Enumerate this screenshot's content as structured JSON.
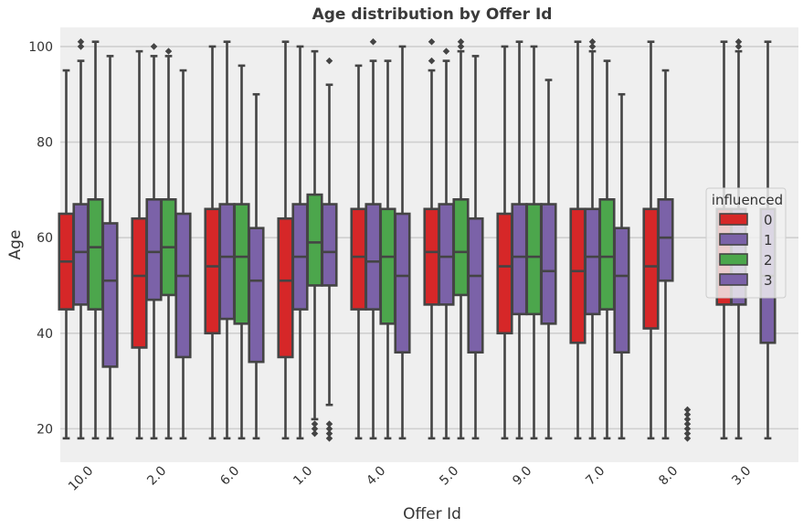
{
  "chart_data": {
    "type": "box",
    "title": "Age distribution by Offer Id",
    "xlabel": "Offer Id",
    "ylabel": "Age",
    "ylim": [
      13,
      104
    ],
    "y_ticks": [
      20,
      40,
      60,
      80,
      100
    ],
    "grid": true,
    "legend_position": "center-right",
    "legend_title": "influenced",
    "categories": [
      "10.0",
      "2.0",
      "6.0",
      "1.0",
      "4.0",
      "5.0",
      "9.0",
      "7.0",
      "8.0",
      "3.0"
    ],
    "series": [
      {
        "name": "0",
        "color": "#d62728",
        "boxes": [
          {
            "category": "10.0",
            "whisker_low": 18,
            "q1": 45,
            "median": 55,
            "q3": 65,
            "whisker_high": 95,
            "outliers": []
          },
          {
            "category": "2.0",
            "whisker_low": 18,
            "q1": 37,
            "median": 52,
            "q3": 64,
            "whisker_high": 99,
            "outliers": []
          },
          {
            "category": "6.0",
            "whisker_low": 18,
            "q1": 40,
            "median": 54,
            "q3": 66,
            "whisker_high": 100,
            "outliers": []
          },
          {
            "category": "1.0",
            "whisker_low": 18,
            "q1": 35,
            "median": 51,
            "q3": 64,
            "whisker_high": 101,
            "outliers": []
          },
          {
            "category": "4.0",
            "whisker_low": 18,
            "q1": 45,
            "median": 56,
            "q3": 66,
            "whisker_high": 96,
            "outliers": []
          },
          {
            "category": "5.0",
            "whisker_low": 18,
            "q1": 46,
            "median": 57,
            "q3": 66,
            "whisker_high": 95,
            "outliers": [
              97,
              101
            ]
          },
          {
            "category": "9.0",
            "whisker_low": 18,
            "q1": 40,
            "median": 54,
            "q3": 65,
            "whisker_high": 100,
            "outliers": []
          },
          {
            "category": "7.0",
            "whisker_low": 18,
            "q1": 38,
            "median": 53,
            "q3": 66,
            "whisker_high": 101,
            "outliers": []
          },
          {
            "category": "8.0",
            "whisker_low": 18,
            "q1": 41,
            "median": 54,
            "q3": 66,
            "whisker_high": 101,
            "outliers": []
          },
          {
            "category": "3.0",
            "whisker_low": 18,
            "q1": 46,
            "median": 55,
            "q3": 66,
            "whisker_high": 101,
            "outliers": []
          }
        ]
      },
      {
        "name": "1",
        "color": "#7b62a8",
        "boxes": [
          {
            "category": "10.0",
            "whisker_low": 18,
            "q1": 46,
            "median": 57,
            "q3": 67,
            "whisker_high": 97,
            "outliers": [
              100,
              101
            ]
          },
          {
            "category": "2.0",
            "whisker_low": 18,
            "q1": 47,
            "median": 57,
            "q3": 68,
            "whisker_high": 98,
            "outliers": [
              100
            ]
          },
          {
            "category": "6.0",
            "whisker_low": 18,
            "q1": 43,
            "median": 56,
            "q3": 67,
            "whisker_high": 101,
            "outliers": []
          },
          {
            "category": "1.0",
            "whisker_low": 18,
            "q1": 45,
            "median": 56,
            "q3": 67,
            "whisker_high": 100,
            "outliers": []
          },
          {
            "category": "4.0",
            "whisker_low": 18,
            "q1": 45,
            "median": 55,
            "q3": 67,
            "whisker_high": 97,
            "outliers": [
              101
            ]
          },
          {
            "category": "5.0",
            "whisker_low": 18,
            "q1": 46,
            "median": 56,
            "q3": 67,
            "whisker_high": 97,
            "outliers": [
              99
            ]
          },
          {
            "category": "9.0",
            "whisker_low": 18,
            "q1": 44,
            "median": 56,
            "q3": 67,
            "whisker_high": 101,
            "outliers": []
          },
          {
            "category": "7.0",
            "whisker_low": 18,
            "q1": 44,
            "median": 56,
            "q3": 66,
            "whisker_high": 99,
            "outliers": [
              100,
              101
            ]
          },
          {
            "category": "8.0",
            "whisker_low": 18,
            "q1": 51,
            "median": 60,
            "q3": 68,
            "whisker_high": 95,
            "outliers": []
          },
          {
            "category": "3.0",
            "whisker_low": 18,
            "q1": 46,
            "median": 55,
            "q3": 66,
            "whisker_high": 99,
            "outliers": [
              100,
              101
            ]
          }
        ]
      },
      {
        "name": "2",
        "color": "#4ca64c",
        "boxes": [
          {
            "category": "10.0",
            "whisker_low": 18,
            "q1": 45,
            "median": 58,
            "q3": 68,
            "whisker_high": 101,
            "outliers": []
          },
          {
            "category": "2.0",
            "whisker_low": 18,
            "q1": 48,
            "median": 58,
            "q3": 68,
            "whisker_high": 98,
            "outliers": [
              99
            ]
          },
          {
            "category": "6.0",
            "whisker_low": 18,
            "q1": 42,
            "median": 56,
            "q3": 67,
            "whisker_high": 96,
            "outliers": []
          },
          {
            "category": "1.0",
            "whisker_low": 22,
            "q1": 50,
            "median": 59,
            "q3": 69,
            "whisker_high": 99,
            "outliers": [
              19,
              20,
              21
            ]
          },
          {
            "category": "4.0",
            "whisker_low": 18,
            "q1": 42,
            "median": 56,
            "q3": 66,
            "whisker_high": 97,
            "outliers": []
          },
          {
            "category": "5.0",
            "whisker_low": 18,
            "q1": 48,
            "median": 57,
            "q3": 68,
            "whisker_high": 99,
            "outliers": [
              100,
              101
            ]
          },
          {
            "category": "9.0",
            "whisker_low": 18,
            "q1": 44,
            "median": 56,
            "q3": 67,
            "whisker_high": 100,
            "outliers": []
          },
          {
            "category": "7.0",
            "whisker_low": 18,
            "q1": 45,
            "median": 56,
            "q3": 68,
            "whisker_high": 97,
            "outliers": []
          }
        ]
      },
      {
        "name": "3",
        "color": "#7b62a8",
        "boxes": [
          {
            "category": "10.0",
            "whisker_low": 18,
            "q1": 33,
            "median": 51,
            "q3": 63,
            "whisker_high": 98,
            "outliers": []
          },
          {
            "category": "2.0",
            "whisker_low": 18,
            "q1": 35,
            "median": 52,
            "q3": 65,
            "whisker_high": 95,
            "outliers": []
          },
          {
            "category": "6.0",
            "whisker_low": 18,
            "q1": 34,
            "median": 51,
            "q3": 62,
            "whisker_high": 90,
            "outliers": []
          },
          {
            "category": "1.0",
            "whisker_low": 25,
            "q1": 50,
            "median": 57,
            "q3": 67,
            "whisker_high": 92,
            "outliers": [
              97,
              18,
              19,
              20,
              21
            ]
          },
          {
            "category": "4.0",
            "whisker_low": 18,
            "q1": 36,
            "median": 52,
            "q3": 65,
            "whisker_high": 100,
            "outliers": []
          },
          {
            "category": "5.0",
            "whisker_low": 18,
            "q1": 36,
            "median": 52,
            "q3": 64,
            "whisker_high": 98,
            "outliers": []
          },
          {
            "category": "9.0",
            "whisker_low": 18,
            "q1": 42,
            "median": 53,
            "q3": 67,
            "whisker_high": 93,
            "outliers": []
          },
          {
            "category": "7.0",
            "whisker_low": 18,
            "q1": 36,
            "median": 52,
            "q3": 62,
            "whisker_high": 90,
            "outliers": []
          },
          {
            "category": "3.0",
            "whisker_low": 18,
            "q1": 38,
            "median": 52,
            "q3": 66,
            "whisker_high": 101,
            "outliers": []
          }
        ]
      }
    ],
    "special_outliers": [
      {
        "category": "8.0",
        "series": "0",
        "values": [
          18,
          19,
          20,
          21,
          22,
          23,
          24
        ]
      }
    ]
  }
}
